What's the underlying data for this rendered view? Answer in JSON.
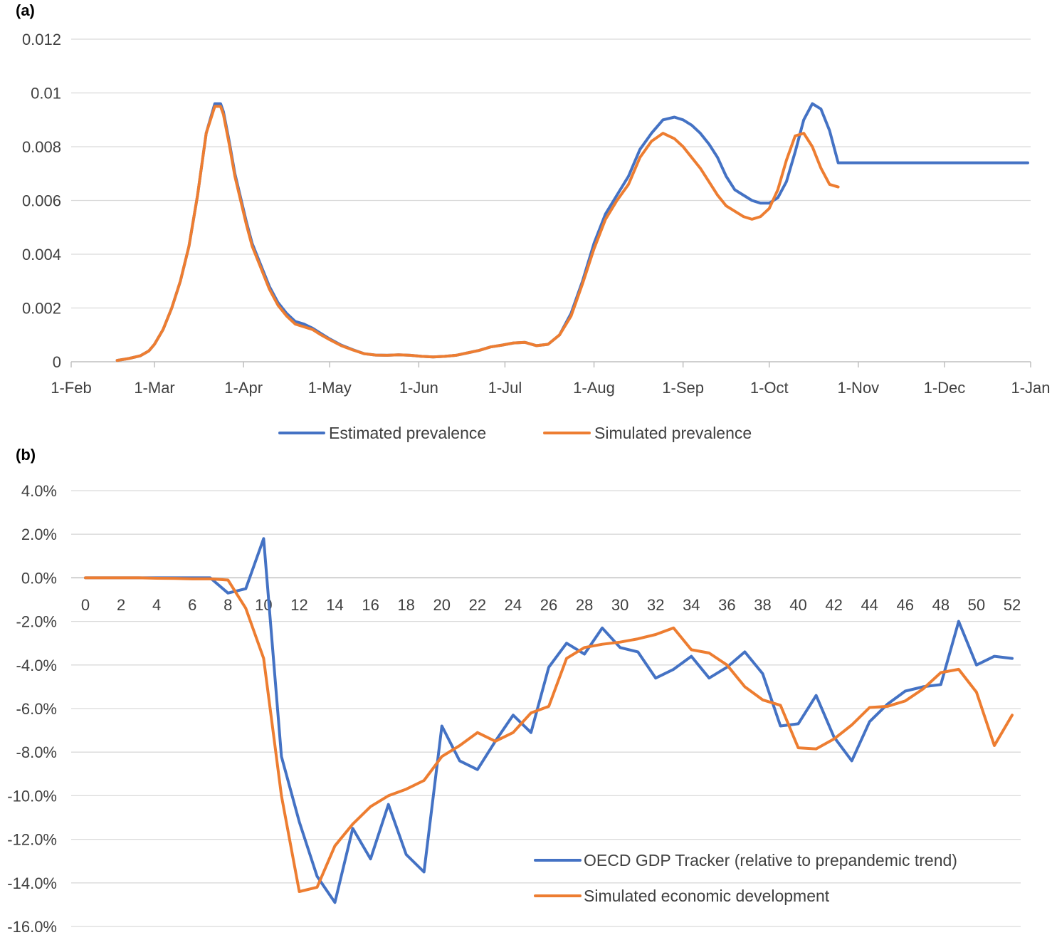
{
  "chart_data": [
    {
      "panel_label": "(a)",
      "type": "line",
      "title": "",
      "xlabel": "",
      "ylabel": "",
      "ylim": [
        0,
        0.012
      ],
      "yticks": [
        0,
        0.002,
        0.004,
        0.006,
        0.008,
        0.01,
        0.012
      ],
      "ytick_labels": [
        "0",
        "0.002",
        "0.004",
        "0.006",
        "0.008",
        "0.01",
        "0.012"
      ],
      "xlim": [
        0,
        334
      ],
      "xticks": [
        0,
        29,
        60,
        90,
        121,
        151,
        182,
        213,
        243,
        274,
        304,
        334
      ],
      "xtick_labels": [
        "1-Feb",
        "1-Mar",
        "1-Apr",
        "1-May",
        "1-Jun",
        "1-Jul",
        "1-Aug",
        "1-Sep",
        "1-Oct",
        "1-Nov",
        "1-Dec",
        "1-Jan"
      ],
      "grid": true,
      "legend_position": "bottom",
      "series": [
        {
          "name": "Estimated prevalence",
          "color": "#4472c4",
          "x": [
            16,
            20,
            24,
            27,
            29,
            32,
            35,
            38,
            41,
            44,
            47,
            50,
            52,
            53,
            55,
            57,
            59,
            61,
            63,
            66,
            69,
            72,
            75,
            78,
            81,
            84,
            87,
            90,
            94,
            98,
            102,
            106,
            110,
            114,
            118,
            122,
            126,
            130,
            134,
            138,
            142,
            146,
            150,
            154,
            158,
            162,
            166,
            170,
            174,
            178,
            182,
            186,
            190,
            194,
            198,
            202,
            206,
            210,
            213,
            216,
            219,
            222,
            225,
            228,
            231,
            234,
            237,
            240,
            243,
            246,
            249,
            252,
            255,
            258,
            261,
            264,
            267,
            270,
            273,
            276,
            279,
            282,
            285,
            288,
            291,
            294,
            297,
            300,
            303,
            306,
            309,
            312,
            315,
            318,
            321,
            324,
            327,
            330,
            333
          ],
          "values": [
            5e-05,
            0.00012,
            0.00022,
            0.0004,
            0.00065,
            0.0012,
            0.002,
            0.003,
            0.0043,
            0.0062,
            0.0085,
            0.0096,
            0.0096,
            0.0093,
            0.0082,
            0.007,
            0.0061,
            0.0052,
            0.0044,
            0.0036,
            0.0028,
            0.0022,
            0.0018,
            0.0015,
            0.0014,
            0.00125,
            0.00105,
            0.00085,
            0.00062,
            0.00045,
            0.0003,
            0.00025,
            0.00024,
            0.00026,
            0.00024,
            0.0002,
            0.00018,
            0.0002,
            0.00024,
            0.00033,
            0.00042,
            0.00055,
            0.00062,
            0.0007,
            0.00072,
            0.0006,
            0.00065,
            0.001,
            0.0018,
            0.003,
            0.0044,
            0.0055,
            0.0062,
            0.0069,
            0.0079,
            0.0085,
            0.009,
            0.0091,
            0.009,
            0.0088,
            0.0085,
            0.0081,
            0.0076,
            0.0069,
            0.0064,
            0.0062,
            0.006,
            0.0059,
            0.0059,
            0.0061,
            0.0067,
            0.0078,
            0.009,
            0.0096,
            0.0094,
            0.0086,
            0.0074,
            0.0074,
            0.0074,
            0.0074,
            0.0074,
            0.0074,
            0.0074,
            0.0074,
            0.0074,
            0.0074,
            0.0074,
            0.0074,
            0.0074,
            0.0074,
            0.0074,
            0.0074,
            0.0074,
            0.0074,
            0.0074,
            0.0074,
            0.0074,
            0.0074,
            0.0074
          ]
        },
        {
          "name": "Simulated prevalence",
          "color": "#ed7d31",
          "x": [
            16,
            20,
            24,
            27,
            29,
            32,
            35,
            38,
            41,
            44,
            47,
            50,
            52,
            53,
            55,
            57,
            59,
            61,
            63,
            66,
            69,
            72,
            75,
            78,
            81,
            84,
            87,
            90,
            94,
            98,
            102,
            106,
            110,
            114,
            118,
            122,
            126,
            130,
            134,
            138,
            142,
            146,
            150,
            154,
            158,
            162,
            166,
            170,
            174,
            178,
            182,
            186,
            190,
            194,
            198,
            202,
            206,
            210,
            213,
            216,
            219,
            222,
            225,
            228,
            231,
            234,
            237,
            240,
            243,
            246,
            249,
            252,
            255,
            258,
            261,
            264,
            267
          ],
          "values": [
            5e-05,
            0.00012,
            0.00022,
            0.0004,
            0.00065,
            0.0012,
            0.002,
            0.003,
            0.0043,
            0.0062,
            0.0085,
            0.0095,
            0.0095,
            0.0092,
            0.0081,
            0.0069,
            0.006,
            0.0051,
            0.0043,
            0.0035,
            0.0027,
            0.0021,
            0.0017,
            0.0014,
            0.0013,
            0.0012,
            0.001,
            0.00082,
            0.0006,
            0.00044,
            0.0003,
            0.00025,
            0.00024,
            0.00026,
            0.00024,
            0.0002,
            0.00018,
            0.0002,
            0.00024,
            0.00033,
            0.00042,
            0.00055,
            0.00062,
            0.0007,
            0.00072,
            0.0006,
            0.00065,
            0.001,
            0.0017,
            0.0029,
            0.0042,
            0.0053,
            0.006,
            0.0066,
            0.0076,
            0.0082,
            0.0085,
            0.0083,
            0.008,
            0.0076,
            0.0072,
            0.0067,
            0.0062,
            0.0058,
            0.0056,
            0.0054,
            0.0053,
            0.0054,
            0.0057,
            0.0064,
            0.0075,
            0.0084,
            0.0085,
            0.008,
            0.0072,
            0.0066,
            0.0065
          ]
        }
      ]
    },
    {
      "panel_label": "(b)",
      "type": "line",
      "title": "",
      "xlabel": "",
      "ylabel": "",
      "ylim": [
        -16,
        4
      ],
      "yticks": [
        4,
        2,
        0,
        -2,
        -4,
        -6,
        -8,
        -10,
        -12,
        -14,
        -16
      ],
      "ytick_labels": [
        "4.0%",
        "2.0%",
        "0.0%",
        "-2.0%",
        "-4.0%",
        "-6.0%",
        "-8.0%",
        "-10.0%",
        "-12.0%",
        "-14.0%",
        "-16.0%"
      ],
      "xlim": [
        0,
        52
      ],
      "xticks": [
        0,
        2,
        4,
        6,
        8,
        10,
        12,
        14,
        16,
        18,
        20,
        22,
        24,
        26,
        28,
        30,
        32,
        34,
        36,
        38,
        40,
        42,
        44,
        46,
        48,
        50,
        52
      ],
      "xtick_labels": [
        "0",
        "2",
        "4",
        "6",
        "8",
        "10",
        "12",
        "14",
        "16",
        "18",
        "20",
        "22",
        "24",
        "26",
        "28",
        "30",
        "32",
        "34",
        "36",
        "38",
        "40",
        "42",
        "44",
        "46",
        "48",
        "50",
        "52"
      ],
      "grid": true,
      "legend_position": "bottom-right",
      "series": [
        {
          "name": "OECD GDP Tracker (relative to prepandemic trend)",
          "color": "#4472c4",
          "x": [
            0,
            1,
            2,
            3,
            4,
            5,
            6,
            7,
            8,
            9,
            10,
            11,
            12,
            13,
            14,
            15,
            16,
            17,
            18,
            19,
            20,
            21,
            22,
            23,
            24,
            25,
            26,
            27,
            28,
            29,
            30,
            31,
            32,
            33,
            34,
            35,
            36,
            37,
            38,
            39,
            40,
            41,
            42,
            43,
            44,
            45,
            46,
            47,
            48,
            49,
            50,
            51,
            52
          ],
          "values": [
            0,
            0,
            0,
            0,
            0,
            0,
            0,
            0,
            -0.7,
            -0.5,
            1.8,
            -8.2,
            -11.2,
            -13.7,
            -14.9,
            -11.5,
            -12.9,
            -10.4,
            -12.7,
            -13.5,
            -6.8,
            -8.4,
            -8.8,
            -7.5,
            -6.3,
            -7.1,
            -4.1,
            -3.0,
            -3.5,
            -2.3,
            -3.2,
            -3.4,
            -4.6,
            -4.2,
            -3.6,
            -4.6,
            -4.1,
            -3.4,
            -4.4,
            -6.8,
            -6.7,
            -5.4,
            -7.3,
            -8.4,
            -6.6,
            -5.8,
            -5.2,
            -5.0,
            -4.9,
            -2.0,
            -4.0,
            -3.6,
            -3.7
          ]
        },
        {
          "name": "Simulated economic development",
          "color": "#ed7d31",
          "x": [
            0,
            1,
            2,
            3,
            4,
            5,
            6,
            7,
            8,
            9,
            10,
            11,
            12,
            13,
            14,
            15,
            16,
            17,
            18,
            19,
            20,
            21,
            22,
            23,
            24,
            25,
            26,
            27,
            28,
            29,
            30,
            31,
            32,
            33,
            34,
            35,
            36,
            37,
            38,
            39,
            40,
            41,
            42,
            43,
            44,
            45,
            46,
            47,
            48,
            49,
            50,
            51,
            52
          ],
          "values": [
            0,
            0,
            0,
            0,
            -0.02,
            -0.03,
            -0.05,
            -0.05,
            -0.1,
            -1.4,
            -3.7,
            -10.0,
            -14.4,
            -14.2,
            -12.3,
            -11.3,
            -10.5,
            -10.0,
            -9.7,
            -9.3,
            -8.2,
            -7.7,
            -7.1,
            -7.5,
            -7.1,
            -6.2,
            -5.9,
            -3.7,
            -3.2,
            -3.05,
            -2.95,
            -2.8,
            -2.6,
            -2.3,
            -3.3,
            -3.45,
            -4.0,
            -5.0,
            -5.6,
            -5.85,
            -7.8,
            -7.85,
            -7.4,
            -6.75,
            -5.95,
            -5.9,
            -5.65,
            -5.1,
            -4.35,
            -4.2,
            -5.25,
            -7.7,
            -6.3
          ]
        }
      ]
    }
  ]
}
